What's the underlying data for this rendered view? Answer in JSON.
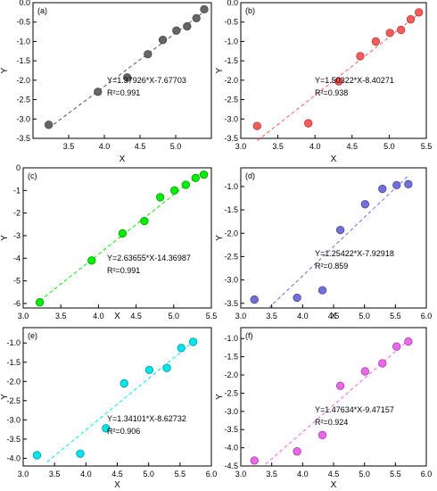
{
  "chart_data": [
    {
      "panel": "(a)",
      "type": "scatter",
      "xlabel": "X",
      "ylabel": "Y",
      "xlim": [
        3.0,
        5.5
      ],
      "ylim": [
        -3.5,
        0.0
      ],
      "xticks": [
        3.5,
        4.0,
        4.5,
        5.0
      ],
      "xtick_labels": [
        "3.5",
        "4.0",
        "4.5",
        "5.0"
      ],
      "yticks": [
        0.0,
        -0.5,
        -1.0,
        -1.5,
        -2.0,
        -2.5,
        -3.0,
        -3.5
      ],
      "ytick_labels": [
        "0.0",
        "-0.5",
        "-1.0",
        "-1.5",
        "-2.0",
        "-2.5",
        "-3.0",
        "-3.5"
      ],
      "color": "#666666",
      "x": [
        3.22,
        3.91,
        4.32,
        4.61,
        4.82,
        5.01,
        5.16,
        5.29,
        5.4
      ],
      "y": [
        -3.15,
        -2.3,
        -1.93,
        -1.33,
        -0.96,
        -0.72,
        -0.61,
        -0.4,
        -0.17
      ],
      "fit": {
        "slope": 1.37926,
        "intercept": -7.67703,
        "x_range": [
          3.22,
          5.4
        ]
      },
      "equation": "Y=1.37926*X-7.67703",
      "r2_label": "R²=0.991"
    },
    {
      "panel": "(b)",
      "type": "scatter",
      "xlabel": "X",
      "ylabel": "Y",
      "xlim": [
        3.0,
        5.5
      ],
      "ylim": [
        -3.5,
        0.0
      ],
      "xticks": [
        3.0,
        3.5,
        4.0,
        4.5,
        5.0,
        5.5
      ],
      "xtick_labels": [
        "3.0",
        "3.5",
        "4.0",
        "4.5",
        "5.0",
        "5.5"
      ],
      "yticks": [
        0.0,
        -0.5,
        -1.0,
        -1.5,
        -2.0,
        -2.5,
        -3.0,
        -3.5
      ],
      "ytick_labels": [
        "0.0",
        "-0.5",
        "-1.0",
        "-1.5",
        "-2.0",
        "-2.5",
        "-3.0",
        "-3.5"
      ],
      "color": "#ff5a5a",
      "x": [
        3.22,
        3.91,
        4.32,
        4.61,
        4.82,
        5.01,
        5.16,
        5.29,
        5.4
      ],
      "y": [
        -3.18,
        -3.11,
        -2.03,
        -1.38,
        -1.0,
        -0.78,
        -0.7,
        -0.43,
        -0.25
      ],
      "fit": {
        "slope": 1.50322,
        "intercept": -8.40271,
        "x_range": [
          3.22,
          5.4
        ]
      },
      "equation": "Y=1.50322*X-8.40271",
      "r2_label": "R²=0.938"
    },
    {
      "panel": "(c)",
      "type": "scatter",
      "xlabel": "X",
      "ylabel": "Y",
      "xlim": [
        3.0,
        5.5
      ],
      "ylim": [
        -6.2,
        0.0
      ],
      "xticks": [
        3.0,
        3.5,
        4.0,
        4.5,
        5.0,
        5.5
      ],
      "xtick_labels": [
        "3.0",
        "3.5",
        "4.0",
        "4.5",
        "5.0",
        "5.5"
      ],
      "yticks": [
        0,
        -1,
        -2,
        -3,
        -4,
        -5,
        -6
      ],
      "ytick_labels": [
        "0",
        "-1",
        "-2",
        "-3",
        "-4",
        "-5",
        "-6"
      ],
      "color": "#00ee00",
      "x": [
        3.22,
        3.91,
        4.32,
        4.61,
        4.82,
        5.01,
        5.16,
        5.29,
        5.4
      ],
      "y": [
        -5.95,
        -4.1,
        -2.9,
        -2.35,
        -1.3,
        -1.0,
        -0.75,
        -0.45,
        -0.3
      ],
      "fit": {
        "slope": 2.63655,
        "intercept": -14.36987,
        "x_range": [
          3.22,
          5.4
        ]
      },
      "equation": "Y=2.63655*X-14.36987",
      "r2_label": "R²=0.991"
    },
    {
      "panel": "(d)",
      "type": "scatter",
      "xlabel": "X",
      "ylabel": "Y",
      "xlim": [
        3.0,
        6.0
      ],
      "ylim": [
        -3.6,
        -0.6
      ],
      "xticks": [
        3.0,
        3.5,
        4.0,
        4.5,
        5.0,
        5.5,
        6.0
      ],
      "xtick_labels": [
        "3.0",
        "3.5",
        "4.0",
        "4.5",
        "5.0",
        "5.5",
        "6.0"
      ],
      "yticks": [
        -1.0,
        -1.5,
        -2.0,
        -2.5,
        -3.0,
        -3.5
      ],
      "ytick_labels": [
        "-1.0",
        "-1.5",
        "-2.0",
        "-2.5",
        "-3.0",
        "-3.5"
      ],
      "color": "#7070dd",
      "x": [
        3.22,
        3.91,
        4.32,
        4.61,
        5.01,
        5.29,
        5.52,
        5.71
      ],
      "y": [
        -3.42,
        -3.38,
        -3.22,
        -1.93,
        -1.38,
        -1.05,
        -0.97,
        -0.95
      ],
      "fit": {
        "slope": 1.25422,
        "intercept": -7.92918,
        "x_range": [
          3.45,
          5.7
        ]
      },
      "equation": "Y=1.25422*X-7.92918",
      "r2_label": "R²=0.859"
    },
    {
      "panel": "(e)",
      "type": "scatter",
      "xlabel": "X",
      "ylabel": "Y",
      "xlim": [
        3.0,
        6.0
      ],
      "ylim": [
        -4.2,
        -0.6
      ],
      "xticks": [
        3.0,
        3.5,
        4.0,
        4.5,
        5.0,
        5.5,
        6.0
      ],
      "xtick_labels": [
        "3.0",
        "3.5",
        "4.0",
        "4.5",
        "5.0",
        "5.5",
        "6.0"
      ],
      "yticks": [
        -1.0,
        -1.5,
        -2.0,
        -2.5,
        -3.0,
        -3.5,
        -4.0
      ],
      "ytick_labels": [
        "-1.0",
        "-1.5",
        "-2.0",
        "-2.5",
        "-3.0",
        "-3.5",
        "-4.0"
      ],
      "color": "#00e5ee",
      "x": [
        3.22,
        3.91,
        4.32,
        4.61,
        5.01,
        5.29,
        5.52,
        5.71
      ],
      "y": [
        -3.92,
        -3.88,
        -3.22,
        -2.05,
        -1.7,
        -1.65,
        -1.13,
        -0.97
      ],
      "fit": {
        "slope": 1.34101,
        "intercept": -8.62732,
        "x_range": [
          3.38,
          5.75
        ]
      },
      "equation": "Y=1.34101*X-8.62732",
      "r2_label": "R²=0.906"
    },
    {
      "panel": "(f)",
      "type": "scatter",
      "xlabel": "X",
      "ylabel": "Y",
      "xlim": [
        3.0,
        6.0
      ],
      "ylim": [
        -4.5,
        -0.7
      ],
      "xticks": [
        3.0,
        3.5,
        4.0,
        4.5,
        5.0,
        5.5,
        6.0
      ],
      "xtick_labels": [
        "3.0",
        "3.5",
        "4.0",
        "4.5",
        "5.0",
        "5.5",
        "6.0"
      ],
      "yticks": [
        -1.0,
        -1.5,
        -2.0,
        -2.5,
        -3.0,
        -3.5,
        -4.0,
        -4.5
      ],
      "ytick_labels": [
        "-1.0",
        "-1.5",
        "-2.0",
        "-2.5",
        "-3.0",
        "-3.5",
        "-4.0",
        "-4.5"
      ],
      "color": "#ee66ee",
      "x": [
        3.22,
        3.91,
        4.32,
        4.61,
        5.01,
        5.29,
        5.52,
        5.71
      ],
      "y": [
        -4.35,
        -4.1,
        -3.65,
        -2.3,
        -1.9,
        -1.68,
        -1.22,
        -1.08
      ],
      "fit": {
        "slope": 1.47634,
        "intercept": -9.47157,
        "x_range": [
          3.4,
          5.75
        ]
      },
      "equation": "Y=1.47634*X-9.47157",
      "r2_label": "R²=0.924"
    }
  ]
}
